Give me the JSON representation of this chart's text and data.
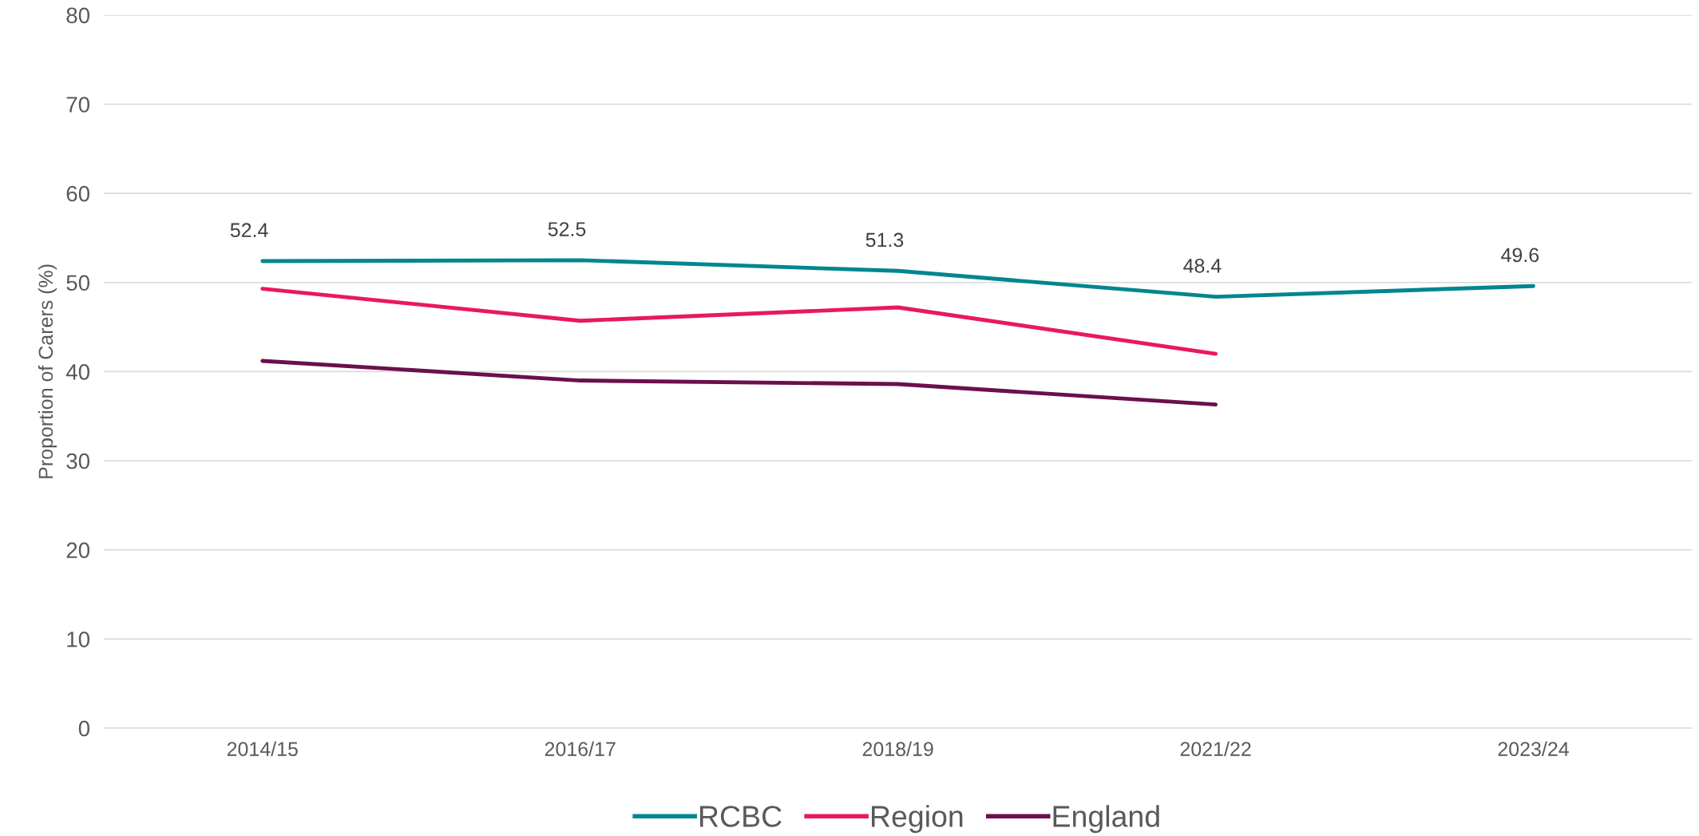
{
  "chart_data": {
    "type": "line",
    "ylabel": "Proportion of Carers (%)",
    "categories": [
      "2014/15",
      "2016/17",
      "2018/19",
      "2021/22",
      "2023/24"
    ],
    "series": [
      {
        "name": "RCBC",
        "color": "#00868f",
        "values": [
          52.4,
          52.5,
          51.3,
          48.4,
          49.6
        ],
        "value_labels": [
          "52.4",
          "52.5",
          "51.3",
          "48.4",
          "49.6"
        ]
      },
      {
        "name": "Region",
        "color": "#e8195e",
        "values": [
          49.3,
          45.7,
          47.2,
          42.0,
          null
        ]
      },
      {
        "name": "England",
        "color": "#6b0f4e",
        "values": [
          41.2,
          39.0,
          38.6,
          36.3,
          null
        ]
      }
    ],
    "ylim": [
      0,
      80
    ],
    "yticks": [
      0,
      10,
      20,
      30,
      40,
      50,
      60,
      70,
      80
    ],
    "grid": "y",
    "legend": "bottom",
    "marker": "none",
    "line_style": "solid"
  }
}
